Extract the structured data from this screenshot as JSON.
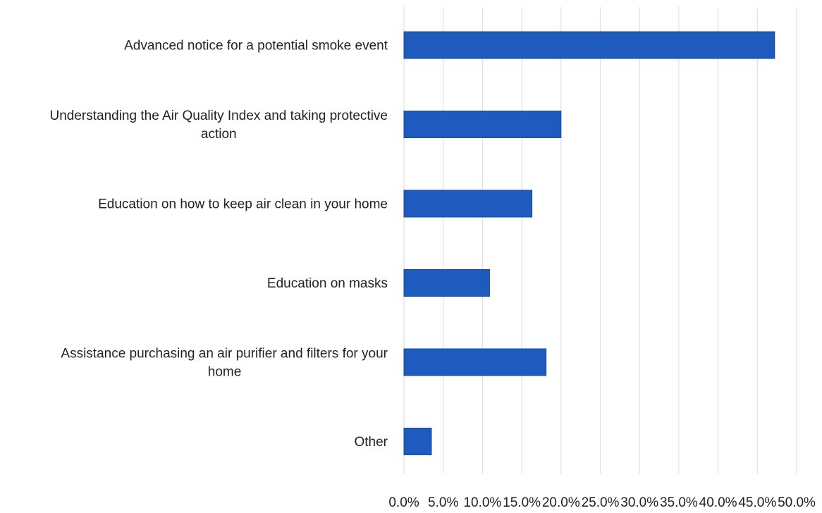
{
  "colors": {
    "bar": "#1f5bbf",
    "bar_stroke": "#164a9e",
    "grid": "#e0e0e0",
    "text": "#222222"
  },
  "chart_data": {
    "type": "bar",
    "orientation": "horizontal",
    "categories": [
      [
        "Advanced notice for a potential smoke event"
      ],
      [
        "Understanding the Air Quality Index and taking protective",
        "action"
      ],
      [
        "Education on how to keep air clean in your home"
      ],
      [
        "Education on masks"
      ],
      [
        "Assistance purchasing an air purifier and filters for your",
        "home"
      ],
      [
        "Other"
      ]
    ],
    "values": [
      47.2,
      20.0,
      16.3,
      10.9,
      18.1,
      3.5
    ],
    "value_unit": "%",
    "xlim": [
      0,
      50
    ],
    "x_ticks": [
      0,
      5,
      10,
      15,
      20,
      25,
      30,
      35,
      40,
      45,
      50
    ],
    "x_tick_labels": [
      "0.0%",
      "5.0%",
      "10.0%",
      "15.0%",
      "20.0%",
      "25.0%",
      "30.0%",
      "35.0%",
      "40.0%",
      "45.0%",
      "50.0%"
    ],
    "grid": "vertical",
    "legend": "none",
    "title": "",
    "xlabel": "",
    "ylabel": ""
  }
}
